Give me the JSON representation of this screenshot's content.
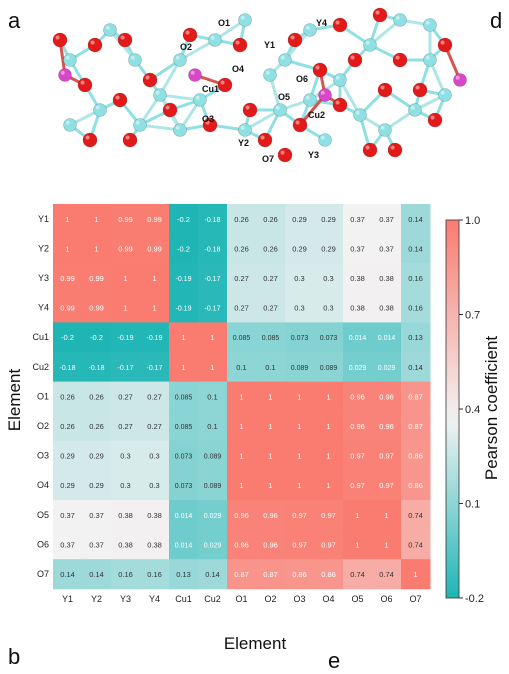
{
  "panels": {
    "a": "a",
    "d": "d",
    "b": "b",
    "e": "e"
  },
  "structure": {
    "atom_labels": [
      "O1",
      "Y4",
      "O2",
      "Y1",
      "O4",
      "O6",
      "Cu1",
      "O3",
      "O5",
      "Cu2",
      "Y2",
      "O7",
      "Y3"
    ],
    "colors": {
      "oxygen": "#e31a1a",
      "yttrium": "#8ee0e3",
      "copper": "#d946c8"
    }
  },
  "chart_data": {
    "type": "heatmap",
    "title": "",
    "xlabel": "Element",
    "ylabel": "Element",
    "colorbar_label": "Pearson coefficient",
    "colorbar_ticks": [
      "1.0",
      "0.7",
      "0.4",
      "0.1",
      "-0.2"
    ],
    "colorbar_tick_values": [
      1.0,
      0.7,
      0.4,
      0.1,
      -0.2
    ],
    "vmin": -0.2,
    "vmax": 1.0,
    "x_categories": [
      "Y1",
      "Y2",
      "Y3",
      "Y4",
      "Cu1",
      "Cu2",
      "O1",
      "O2",
      "O3",
      "O4",
      "O5",
      "O6",
      "O7"
    ],
    "y_categories": [
      "Y1",
      "Y2",
      "Y3",
      "Y4",
      "Cu1",
      "Cu2",
      "O1",
      "O2",
      "O3",
      "O4",
      "O5",
      "O6",
      "O7"
    ],
    "cell_labels": [
      [
        "1",
        "1",
        "0.99",
        "0.99",
        "-0.2",
        "-0.18",
        "0.26",
        "0.26",
        "0.29",
        "0.29",
        "0.37",
        "0.37",
        "0.14"
      ],
      [
        "1",
        "1",
        "0.99",
        "0.99",
        "-0.2",
        "-0.18",
        "0.26",
        "0.26",
        "0.29",
        "0.29",
        "0.37",
        "0.37",
        "0.14"
      ],
      [
        "0.99",
        "0.99",
        "1",
        "1",
        "-0.19",
        "-0.17",
        "0.27",
        "0.27",
        "0.3",
        "0.3",
        "0.38",
        "0.38",
        "0.16"
      ],
      [
        "0.99",
        "0.99",
        "1",
        "1",
        "-0.19",
        "-0.17",
        "0.27",
        "0.27",
        "0.3",
        "0.3",
        "0.38",
        "0.38",
        "0.16"
      ],
      [
        "-0.2",
        "-0.2",
        "-0.19",
        "-0.19",
        "1",
        "1",
        "0.085",
        "0.085",
        "0.073",
        "0.073",
        "0.014",
        "0.014",
        "0.13"
      ],
      [
        "-0.18",
        "-0.18",
        "-0.17",
        "-0.17",
        "1",
        "1",
        "0.1",
        "0.1",
        "0.089",
        "0.089",
        "0.029",
        "0.029",
        "0.14"
      ],
      [
        "0.26",
        "0.26",
        "0.27",
        "0.27",
        "0.085",
        "0.1",
        "1",
        "1",
        "1",
        "1",
        "0.96",
        "0.96",
        "0.87"
      ],
      [
        "0.26",
        "0.26",
        "0.27",
        "0.27",
        "0.085",
        "0.1",
        "1",
        "1",
        "1",
        "1",
        "0.96",
        "0.96",
        "0.87"
      ],
      [
        "0.29",
        "0.29",
        "0.3",
        "0.3",
        "0.073",
        "0.089",
        "1",
        "1",
        "1",
        "1",
        "0.97",
        "0.97",
        "0.86"
      ],
      [
        "0.29",
        "0.29",
        "0.3",
        "0.3",
        "0.073",
        "0.089",
        "1",
        "1",
        "1",
        "1",
        "0.97",
        "0.97",
        "0.86"
      ],
      [
        "0.37",
        "0.37",
        "0.38",
        "0.38",
        "0.014",
        "0.029",
        "0.96",
        "0.96",
        "0.97",
        "0.97",
        "1",
        "1",
        "0.74"
      ],
      [
        "0.37",
        "0.37",
        "0.38",
        "0.38",
        "0.014",
        "0.029",
        "0.96",
        "0.96",
        "0.97",
        "0.97",
        "1",
        "1",
        "0.74"
      ],
      [
        "0.14",
        "0.14",
        "0.16",
        "0.16",
        "0.13",
        "0.14",
        "0.87",
        "0.87",
        "0.86",
        "0.86",
        "0.74",
        "0.74",
        "1"
      ]
    ],
    "colormap": {
      "low": "#1fb5b5",
      "mid": "#f2f2f2",
      "high": "#fa7b70"
    },
    "legend": "right"
  }
}
